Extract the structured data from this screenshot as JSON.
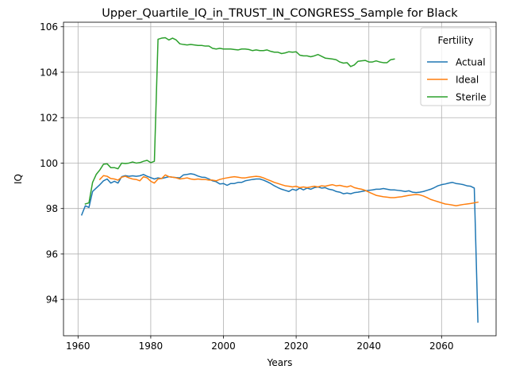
{
  "chart_data": {
    "type": "line",
    "title": "Upper_Quartile_IQ_in_TRUST_IN_CONGRESS_Sample for Black",
    "xlabel": "Years",
    "ylabel": "IQ",
    "xlim": [
      1956,
      2075
    ],
    "ylim": [
      92.4,
      106.2
    ],
    "xticks": [
      1960,
      1980,
      2000,
      2020,
      2040,
      2060
    ],
    "yticks": [
      94,
      96,
      98,
      100,
      102,
      104,
      106
    ],
    "xtick_labels": [
      "1960",
      "1980",
      "2000",
      "2020",
      "2040",
      "2060"
    ],
    "ytick_labels": [
      "94",
      "96",
      "98",
      "100",
      "102",
      "104",
      "106"
    ],
    "grid": true,
    "legend": {
      "title": "Fertility",
      "position": "top-right"
    },
    "series": [
      {
        "name": "Actual",
        "color": "#1f77b4",
        "points": [
          [
            1961,
            97.72
          ],
          [
            1962,
            98.12
          ],
          [
            1963,
            98.05
          ],
          [
            1964,
            98.75
          ],
          [
            1965,
            98.9
          ],
          [
            1966,
            99.05
          ],
          [
            1967,
            99.22
          ],
          [
            1968,
            99.3
          ],
          [
            1969,
            99.12
          ],
          [
            1970,
            99.2
          ],
          [
            1971,
            99.12
          ],
          [
            1972,
            99.4
          ],
          [
            1973,
            99.45
          ],
          [
            1974,
            99.42
          ],
          [
            1975,
            99.44
          ],
          [
            1976,
            99.42
          ],
          [
            1977,
            99.44
          ],
          [
            1978,
            99.5
          ],
          [
            1979,
            99.42
          ],
          [
            1980,
            99.36
          ],
          [
            1981,
            99.3
          ],
          [
            1982,
            99.35
          ],
          [
            1983,
            99.32
          ],
          [
            1984,
            99.36
          ],
          [
            1985,
            99.4
          ],
          [
            1986,
            99.38
          ],
          [
            1987,
            99.36
          ],
          [
            1988,
            99.35
          ],
          [
            1989,
            99.48
          ],
          [
            1990,
            99.5
          ],
          [
            1991,
            99.53
          ],
          [
            1992,
            99.5
          ],
          [
            1993,
            99.43
          ],
          [
            1994,
            99.38
          ],
          [
            1995,
            99.37
          ],
          [
            1996,
            99.3
          ],
          [
            1997,
            99.22
          ],
          [
            1998,
            99.18
          ],
          [
            1999,
            99.08
          ],
          [
            2000,
            99.1
          ],
          [
            2001,
            99.02
          ],
          [
            2002,
            99.1
          ],
          [
            2003,
            99.1
          ],
          [
            2004,
            99.15
          ],
          [
            2005,
            99.15
          ],
          [
            2006,
            99.22
          ],
          [
            2007,
            99.25
          ],
          [
            2008,
            99.28
          ],
          [
            2009,
            99.3
          ],
          [
            2010,
            99.3
          ],
          [
            2011,
            99.25
          ],
          [
            2012,
            99.18
          ],
          [
            2013,
            99.1
          ],
          [
            2014,
            99.0
          ],
          [
            2015,
            98.92
          ],
          [
            2016,
            98.85
          ],
          [
            2017,
            98.8
          ],
          [
            2018,
            98.75
          ],
          [
            2019,
            98.85
          ],
          [
            2020,
            98.8
          ],
          [
            2021,
            98.9
          ],
          [
            2022,
            98.82
          ],
          [
            2023,
            98.9
          ],
          [
            2024,
            98.85
          ],
          [
            2025,
            98.92
          ],
          [
            2026,
            98.95
          ],
          [
            2027,
            98.9
          ],
          [
            2028,
            98.92
          ],
          [
            2029,
            98.85
          ],
          [
            2030,
            98.82
          ],
          [
            2031,
            98.75
          ],
          [
            2032,
            98.72
          ],
          [
            2033,
            98.65
          ],
          [
            2034,
            98.68
          ],
          [
            2035,
            98.65
          ],
          [
            2036,
            98.7
          ],
          [
            2037,
            98.72
          ],
          [
            2038,
            98.75
          ],
          [
            2039,
            98.78
          ],
          [
            2040,
            98.8
          ],
          [
            2041,
            98.82
          ],
          [
            2042,
            98.85
          ],
          [
            2043,
            98.85
          ],
          [
            2044,
            98.88
          ],
          [
            2045,
            98.85
          ],
          [
            2046,
            98.82
          ],
          [
            2047,
            98.82
          ],
          [
            2048,
            98.8
          ],
          [
            2049,
            98.78
          ],
          [
            2050,
            98.75
          ],
          [
            2051,
            98.78
          ],
          [
            2052,
            98.72
          ],
          [
            2053,
            98.7
          ],
          [
            2054,
            98.72
          ],
          [
            2055,
            98.75
          ],
          [
            2056,
            98.8
          ],
          [
            2057,
            98.85
          ],
          [
            2058,
            98.92
          ],
          [
            2059,
            99.0
          ],
          [
            2060,
            99.05
          ],
          [
            2061,
            99.08
          ],
          [
            2062,
            99.12
          ],
          [
            2063,
            99.15
          ],
          [
            2064,
            99.1
          ],
          [
            2065,
            99.08
          ],
          [
            2066,
            99.05
          ],
          [
            2067,
            99.0
          ],
          [
            2068,
            98.98
          ],
          [
            2069,
            98.9
          ],
          [
            2070,
            93.0
          ]
        ]
      },
      {
        "name": "Ideal",
        "color": "#ff7f0e",
        "points": [
          [
            1966,
            99.28
          ],
          [
            1967,
            99.45
          ],
          [
            1968,
            99.42
          ],
          [
            1969,
            99.32
          ],
          [
            1970,
            99.3
          ],
          [
            1971,
            99.25
          ],
          [
            1972,
            99.38
          ],
          [
            1973,
            99.42
          ],
          [
            1974,
            99.35
          ],
          [
            1975,
            99.3
          ],
          [
            1976,
            99.28
          ],
          [
            1977,
            99.22
          ],
          [
            1978,
            99.4
          ],
          [
            1979,
            99.35
          ],
          [
            1980,
            99.2
          ],
          [
            1981,
            99.12
          ],
          [
            1982,
            99.3
          ],
          [
            1983,
            99.32
          ],
          [
            1984,
            99.48
          ],
          [
            1985,
            99.4
          ],
          [
            1986,
            99.38
          ],
          [
            1987,
            99.35
          ],
          [
            1988,
            99.3
          ],
          [
            1989,
            99.32
          ],
          [
            1990,
            99.35
          ],
          [
            1991,
            99.3
          ],
          [
            1992,
            99.28
          ],
          [
            1993,
            99.3
          ],
          [
            1994,
            99.28
          ],
          [
            1995,
            99.28
          ],
          [
            1996,
            99.25
          ],
          [
            1997,
            99.25
          ],
          [
            1998,
            99.22
          ],
          [
            1999,
            99.28
          ],
          [
            2000,
            99.32
          ],
          [
            2001,
            99.35
          ],
          [
            2002,
            99.38
          ],
          [
            2003,
            99.4
          ],
          [
            2004,
            99.38
          ],
          [
            2005,
            99.35
          ],
          [
            2006,
            99.35
          ],
          [
            2007,
            99.38
          ],
          [
            2008,
            99.4
          ],
          [
            2009,
            99.42
          ],
          [
            2010,
            99.4
          ],
          [
            2011,
            99.35
          ],
          [
            2012,
            99.28
          ],
          [
            2013,
            99.22
          ],
          [
            2014,
            99.15
          ],
          [
            2015,
            99.1
          ],
          [
            2016,
            99.05
          ],
          [
            2017,
            99.0
          ],
          [
            2018,
            98.98
          ],
          [
            2019,
            98.95
          ],
          [
            2020,
            98.98
          ],
          [
            2021,
            98.92
          ],
          [
            2022,
            98.95
          ],
          [
            2023,
            98.92
          ],
          [
            2024,
            98.95
          ],
          [
            2025,
            98.98
          ],
          [
            2026,
            98.95
          ],
          [
            2027,
            99.0
          ],
          [
            2028,
            98.98
          ],
          [
            2029,
            99.02
          ],
          [
            2030,
            99.05
          ],
          [
            2031,
            99.0
          ],
          [
            2032,
            99.02
          ],
          [
            2033,
            98.98
          ],
          [
            2034,
            98.95
          ],
          [
            2035,
            99.0
          ],
          [
            2036,
            98.92
          ],
          [
            2037,
            98.88
          ],
          [
            2038,
            98.85
          ],
          [
            2039,
            98.8
          ],
          [
            2040,
            98.72
          ],
          [
            2041,
            98.65
          ],
          [
            2042,
            98.58
          ],
          [
            2043,
            98.55
          ],
          [
            2044,
            98.52
          ],
          [
            2045,
            98.5
          ],
          [
            2046,
            98.48
          ],
          [
            2047,
            98.48
          ],
          [
            2048,
            98.5
          ],
          [
            2049,
            98.52
          ],
          [
            2050,
            98.55
          ],
          [
            2051,
            98.58
          ],
          [
            2052,
            98.6
          ],
          [
            2053,
            98.62
          ],
          [
            2054,
            98.6
          ],
          [
            2055,
            98.55
          ],
          [
            2056,
            98.48
          ],
          [
            2057,
            98.4
          ],
          [
            2058,
            98.35
          ],
          [
            2059,
            98.3
          ],
          [
            2060,
            98.25
          ],
          [
            2061,
            98.2
          ],
          [
            2062,
            98.18
          ],
          [
            2063,
            98.15
          ],
          [
            2064,
            98.12
          ],
          [
            2065,
            98.15
          ],
          [
            2066,
            98.18
          ],
          [
            2067,
            98.2
          ],
          [
            2068,
            98.22
          ],
          [
            2069,
            98.25
          ],
          [
            2070,
            98.28
          ]
        ]
      },
      {
        "name": "Sterile",
        "color": "#2ca02c",
        "points": [
          [
            1962,
            98.2
          ],
          [
            1963,
            98.25
          ],
          [
            1964,
            99.15
          ],
          [
            1965,
            99.5
          ],
          [
            1966,
            99.7
          ],
          [
            1967,
            99.95
          ],
          [
            1968,
            99.97
          ],
          [
            1969,
            99.8
          ],
          [
            1970,
            99.8
          ],
          [
            1971,
            99.75
          ],
          [
            1972,
            100.0
          ],
          [
            1973,
            99.98
          ],
          [
            1974,
            100.0
          ],
          [
            1975,
            100.05
          ],
          [
            1976,
            100.0
          ],
          [
            1977,
            100.02
          ],
          [
            1978,
            100.08
          ],
          [
            1979,
            100.12
          ],
          [
            1980,
            100.02
          ],
          [
            1981,
            100.08
          ],
          [
            1982,
            105.45
          ],
          [
            1983,
            105.5
          ],
          [
            1984,
            105.52
          ],
          [
            1985,
            105.42
          ],
          [
            1986,
            105.5
          ],
          [
            1987,
            105.42
          ],
          [
            1988,
            105.25
          ],
          [
            1989,
            105.22
          ],
          [
            1990,
            105.2
          ],
          [
            1991,
            105.22
          ],
          [
            1992,
            105.2
          ],
          [
            1993,
            105.18
          ],
          [
            1994,
            105.18
          ],
          [
            1995,
            105.15
          ],
          [
            1996,
            105.15
          ],
          [
            1997,
            105.05
          ],
          [
            1998,
            105.02
          ],
          [
            1999,
            105.05
          ],
          [
            2000,
            105.02
          ],
          [
            2001,
            105.02
          ],
          [
            2002,
            105.02
          ],
          [
            2003,
            105.0
          ],
          [
            2004,
            104.98
          ],
          [
            2005,
            105.02
          ],
          [
            2006,
            105.02
          ],
          [
            2007,
            105.0
          ],
          [
            2008,
            104.95
          ],
          [
            2009,
            104.98
          ],
          [
            2010,
            104.95
          ],
          [
            2011,
            104.95
          ],
          [
            2012,
            104.98
          ],
          [
            2013,
            104.92
          ],
          [
            2014,
            104.88
          ],
          [
            2015,
            104.88
          ],
          [
            2016,
            104.82
          ],
          [
            2017,
            104.85
          ],
          [
            2018,
            104.9
          ],
          [
            2019,
            104.88
          ],
          [
            2020,
            104.9
          ],
          [
            2021,
            104.75
          ],
          [
            2022,
            104.72
          ],
          [
            2023,
            104.72
          ],
          [
            2024,
            104.68
          ],
          [
            2025,
            104.72
          ],
          [
            2026,
            104.78
          ],
          [
            2027,
            104.7
          ],
          [
            2028,
            104.62
          ],
          [
            2029,
            104.6
          ],
          [
            2030,
            104.58
          ],
          [
            2031,
            104.55
          ],
          [
            2032,
            104.45
          ],
          [
            2033,
            104.4
          ],
          [
            2034,
            104.42
          ],
          [
            2035,
            104.25
          ],
          [
            2036,
            104.32
          ],
          [
            2037,
            104.48
          ],
          [
            2038,
            104.5
          ],
          [
            2039,
            104.52
          ],
          [
            2040,
            104.45
          ],
          [
            2041,
            104.45
          ],
          [
            2042,
            104.5
          ],
          [
            2043,
            104.45
          ],
          [
            2044,
            104.42
          ],
          [
            2045,
            104.42
          ],
          [
            2046,
            104.55
          ],
          [
            2047,
            104.58
          ]
        ]
      }
    ]
  }
}
